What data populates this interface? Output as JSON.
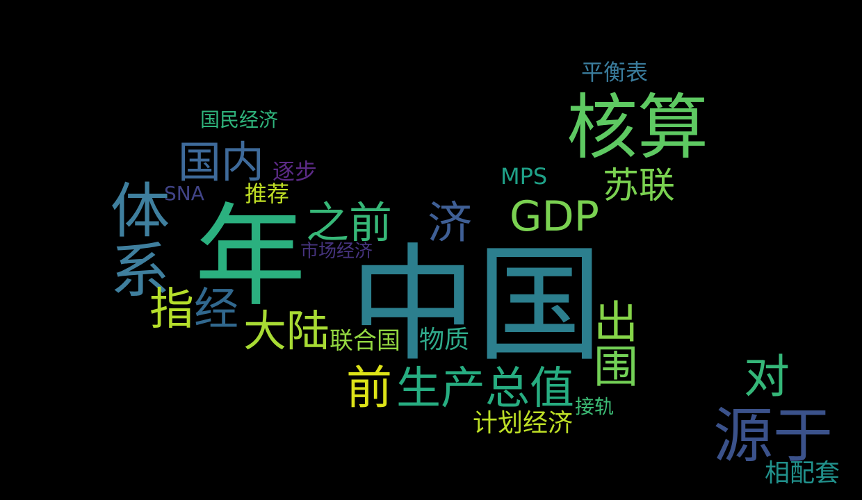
{
  "words": [
    {
      "text": "中国",
      "color": "#2c7f8e"
    },
    {
      "text": "年",
      "color": "#2bb07f"
    },
    {
      "text": "核算",
      "color": "#5ec962"
    },
    {
      "text": "体系",
      "color": "#3f7f9e",
      "orientation": "vertical"
    },
    {
      "text": "源于",
      "color": "#3b528b"
    },
    {
      "text": "GDP",
      "color": "#7ad151"
    },
    {
      "text": "生产总值",
      "color": "#27ad81"
    },
    {
      "text": "国内",
      "color": "#3e6a9a"
    },
    {
      "text": "指",
      "color": "#b5de2b"
    },
    {
      "text": "经",
      "color": "#31688e"
    },
    {
      "text": "大陆",
      "color": "#a8db34"
    },
    {
      "text": "之前",
      "color": "#37b878"
    },
    {
      "text": "济",
      "color": "#3f5f95"
    },
    {
      "text": "苏联",
      "color": "#7ad151"
    },
    {
      "text": "对",
      "color": "#35b779"
    },
    {
      "text": "前",
      "color": "#dde318"
    },
    {
      "text": "出",
      "color": "#86d549",
      "orientation": "vertical"
    },
    {
      "text": "围",
      "color": "#73d056",
      "orientation": "vertical"
    },
    {
      "text": "平衡表",
      "color": "#3a7c9c"
    },
    {
      "text": "国民经济",
      "color": "#2fb47c"
    },
    {
      "text": "逐步",
      "color": "#5b2a86"
    },
    {
      "text": "SNA",
      "color": "#414487"
    },
    {
      "text": "推荐",
      "color": "#c0df25"
    },
    {
      "text": "MPS",
      "color": "#1fa188"
    },
    {
      "text": "市场经济",
      "color": "#46337e"
    },
    {
      "text": "联合国",
      "color": "#93d741"
    },
    {
      "text": "物质",
      "color": "#2fa98a"
    },
    {
      "text": "接轨",
      "color": "#3cbb75"
    },
    {
      "text": "计划经济",
      "color": "#bddf26"
    },
    {
      "text": "相配套",
      "color": "#21918c"
    }
  ]
}
